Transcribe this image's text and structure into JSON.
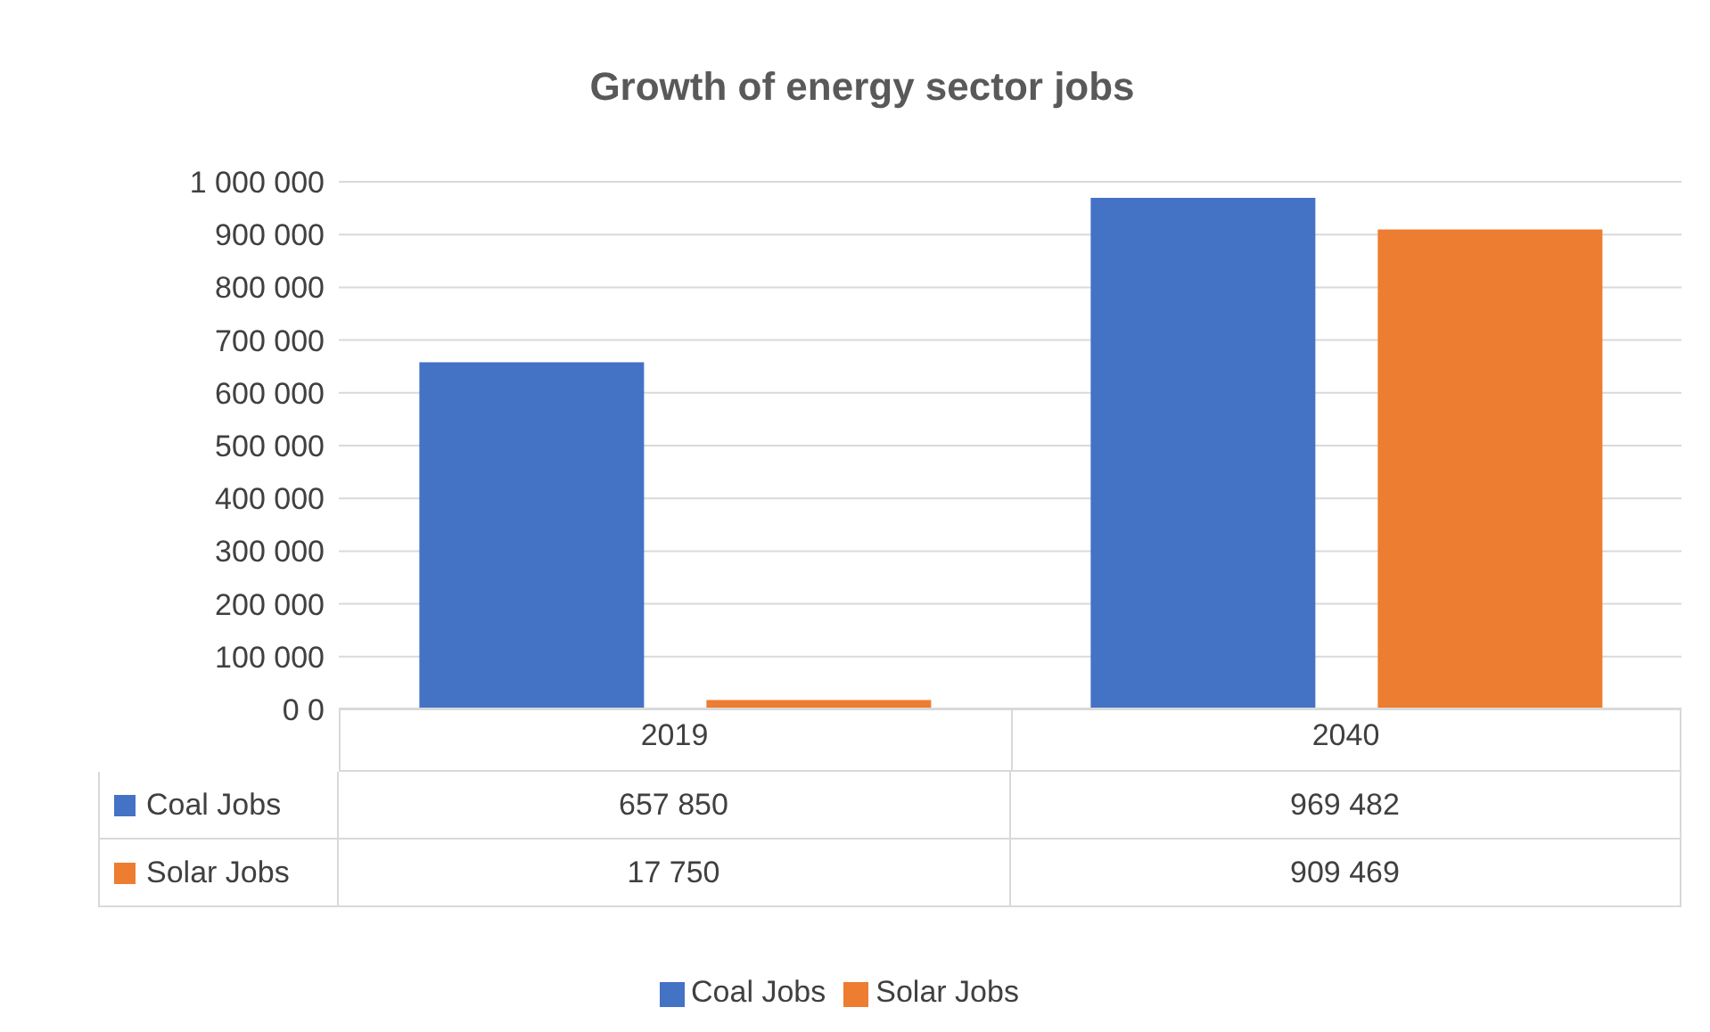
{
  "chart_data": {
    "type": "bar",
    "title": "Growth of energy sector jobs",
    "categories": [
      "2019",
      "2040"
    ],
    "series": [
      {
        "name": "Coal Jobs",
        "color": "#4472c4",
        "values": [
          657850,
          969482
        ],
        "value_labels": [
          "657 850",
          "969 482"
        ]
      },
      {
        "name": "Solar Jobs",
        "color": "#ed7d31",
        "values": [
          17750,
          909469
        ],
        "value_labels": [
          "17 750",
          "909 469"
        ]
      }
    ],
    "ylim": [
      0,
      1000000
    ],
    "yticks": [
      {
        "value": 0,
        "label": "0 0"
      },
      {
        "value": 100000,
        "label": "100 000"
      },
      {
        "value": 200000,
        "label": "200 000"
      },
      {
        "value": 300000,
        "label": "300 000"
      },
      {
        "value": 400000,
        "label": "400 000"
      },
      {
        "value": 500000,
        "label": "500 000"
      },
      {
        "value": 600000,
        "label": "600 000"
      },
      {
        "value": 700000,
        "label": "700 000"
      },
      {
        "value": 800000,
        "label": "800 000"
      },
      {
        "value": 900000,
        "label": "900 000"
      },
      {
        "value": 1000000,
        "label": "1 000 000"
      }
    ],
    "grid": "y",
    "legend": "bottom"
  }
}
